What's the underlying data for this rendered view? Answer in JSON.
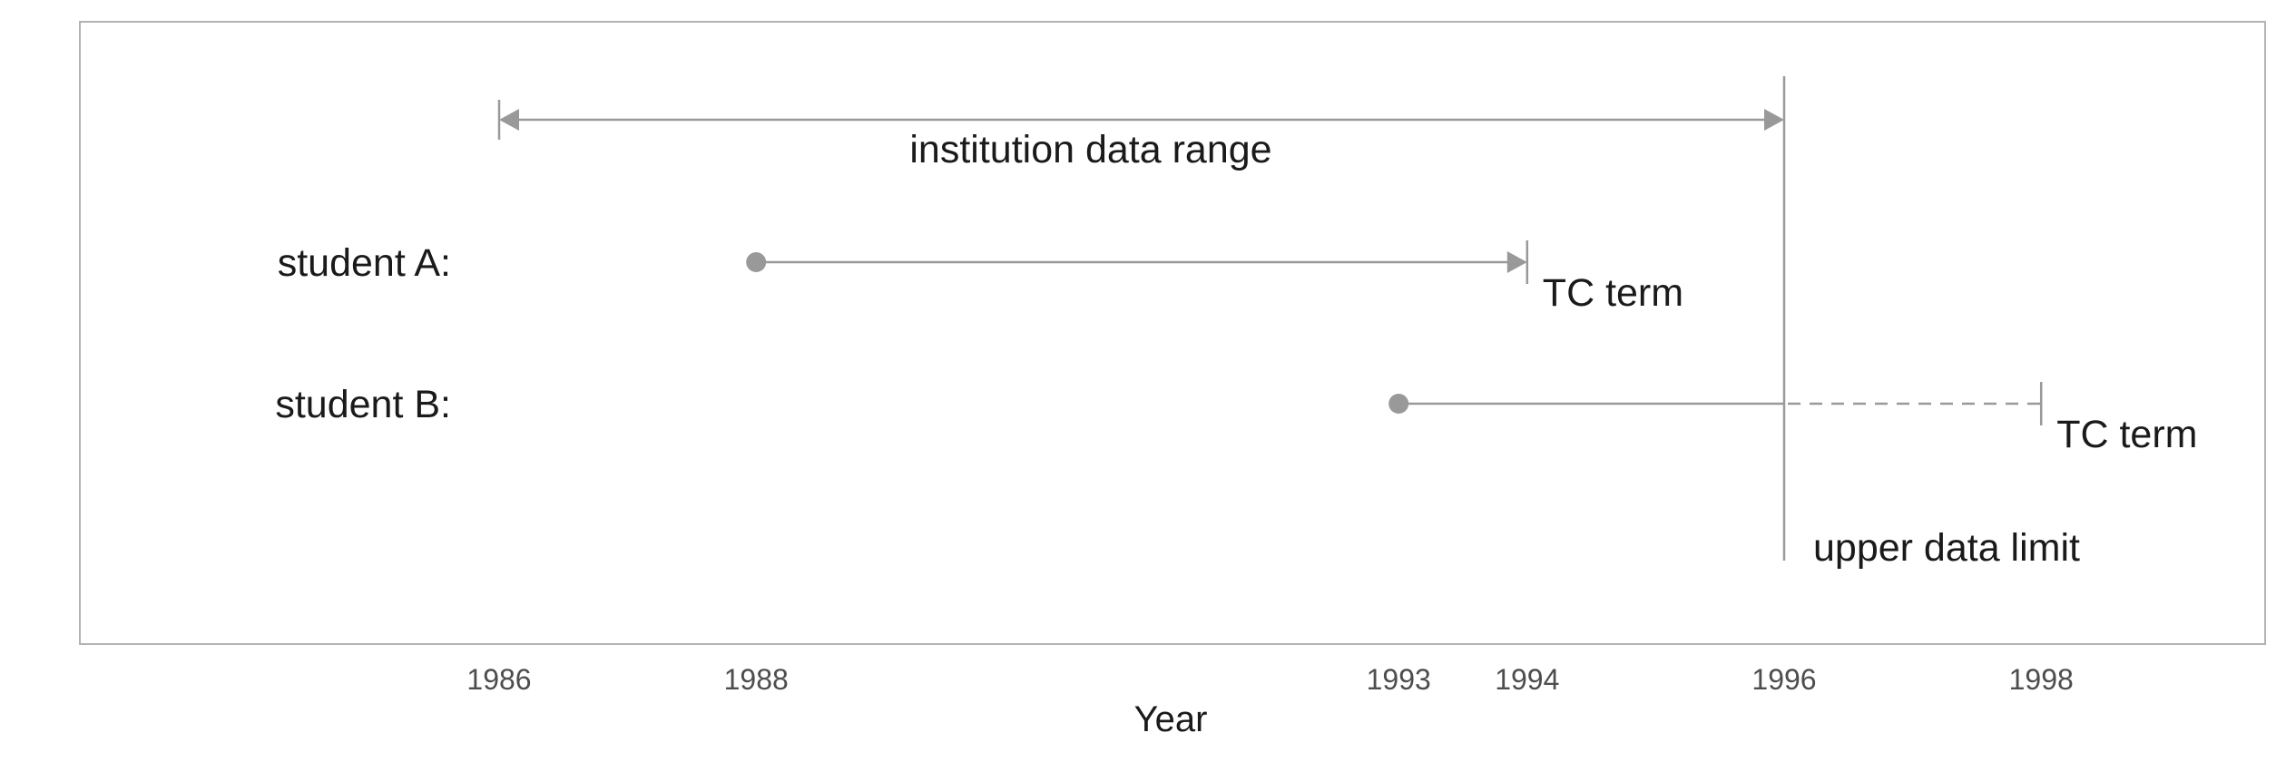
{
  "xlabel": "Year",
  "x_ticks": [
    1986,
    1988,
    1993,
    1994,
    1996,
    1998
  ],
  "xlim": [
    1982.7,
    2000.0
  ],
  "colors": {
    "mark": "#999999",
    "frame": "#b3b3b3",
    "text": "#1a1a1a",
    "tick_text": "#4d4d4d"
  },
  "institution_range": {
    "label": "institution data range",
    "start": 1986,
    "end": 1996
  },
  "upper_limit": {
    "label": "upper data limit",
    "year": 1996
  },
  "students": [
    {
      "label": "student A:",
      "start": 1988,
      "end": 1994,
      "end_label": "TC term",
      "end_style": "arrow"
    },
    {
      "label": "student B:",
      "start": 1993,
      "observed_end": 1996,
      "end": 1998,
      "end_label": "TC term",
      "end_style": "dashed-extension"
    }
  ]
}
